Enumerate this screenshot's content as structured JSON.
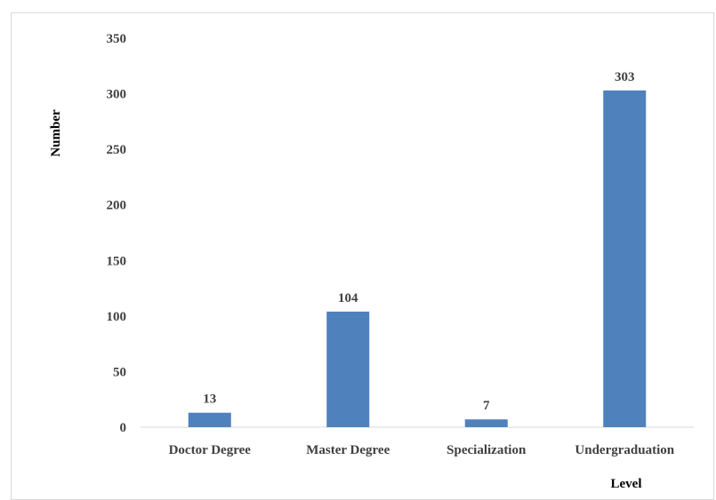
{
  "chart_data": {
    "type": "bar",
    "title": "",
    "xlabel": "Level",
    "ylabel": "Number",
    "categories": [
      "Doctor Degree",
      "Master Degree",
      "Specialization",
      "Undergraduation"
    ],
    "values": [
      13,
      104,
      7,
      303
    ],
    "ylim": [
      0,
      350
    ],
    "yticks": [
      "0",
      "50",
      "100",
      "150",
      "200",
      "250",
      "300",
      "350"
    ],
    "data_labels": [
      "13",
      "104",
      "7",
      "303"
    ],
    "grid": false,
    "legend": "none",
    "bar_color": "#4f81bd"
  }
}
